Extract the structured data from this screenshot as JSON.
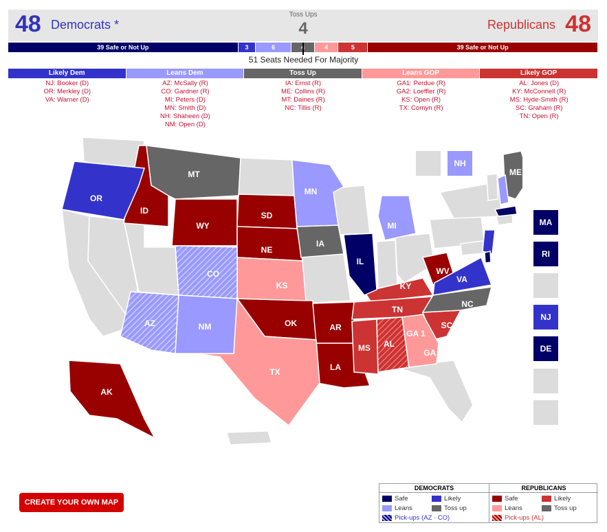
{
  "header": {
    "dem_count": "48",
    "dem_label": "Democrats *",
    "rep_count": "48",
    "rep_label": "Republicans",
    "toss_label": "Toss Ups",
    "toss_count": "4"
  },
  "colors": {
    "safe_dem": "#000066",
    "likely_dem": "#3333cc",
    "leans_dem": "#9999ff",
    "tossup": "#666666",
    "leans_gop": "#ff9999",
    "likely_gop": "#cc3333",
    "safe_gop": "#990000",
    "no_race": "#dcdcdc",
    "dem_text": "#3333bb",
    "rep_text": "#cc3333"
  },
  "seatbar": [
    {
      "label": "39 Safe or Not Up",
      "value": 39,
      "color": "#000066"
    },
    {
      "label": "3",
      "value": 3,
      "color": "#3333cc"
    },
    {
      "label": "6",
      "value": 6,
      "color": "#9999ff"
    },
    {
      "label": "4",
      "value": 4,
      "color": "#666666"
    },
    {
      "label": "4",
      "value": 4,
      "color": "#ff9999"
    },
    {
      "label": "5",
      "value": 5,
      "color": "#cc3333"
    },
    {
      "label": "39 Safe or Not Up",
      "value": 39,
      "color": "#990000"
    }
  ],
  "majority_text": "51 Seats Needed For Majority",
  "columns": [
    {
      "title": "Likely Dem",
      "color": "#3333cc",
      "items": [
        "NJ: Booker (D)",
        "OR: Merkley (D)",
        "VA: Warner (D)"
      ]
    },
    {
      "title": "Leans Dem",
      "color": "#9999ff",
      "items": [
        "AZ: McSally (R)",
        "CO: Gardner (R)",
        "MI: Peters (D)",
        "MN: Smith (D)",
        "NH: Shaheen (D)",
        "NM: Open (D)"
      ]
    },
    {
      "title": "Toss Up",
      "color": "#666666",
      "items": [
        "IA: Ernst (R)",
        "ME: Collins (R)",
        "MT: Daines (R)",
        "NC: Tillis (R)"
      ]
    },
    {
      "title": "Leans GOP",
      "color": "#ff9999",
      "items": [
        "GA1: Perdue (R)",
        "GA2: Loeffler (R)",
        "KS: Open (R)",
        "TX: Cornyn (R)"
      ]
    },
    {
      "title": "Likely GOP",
      "color": "#cc3333",
      "items": [
        "AL: Jones (D)",
        "KY: McConnell (R)",
        "MS: Hyde-Smith (R)",
        "SC: Graham (R)",
        "TN: Open (R)"
      ]
    }
  ],
  "map_labels": {
    "OR": "OR",
    "ID": "ID",
    "MT": "MT",
    "WY": "WY",
    "CO": "CO",
    "NM": "NM",
    "AZ": "AZ",
    "SD": "SD",
    "NE": "NE",
    "KS": "KS",
    "OK": "OK",
    "TX": "TX",
    "MN": "MN",
    "IA": "IA",
    "AR": "AR",
    "LA": "LA",
    "IL": "IL",
    "MI": "MI",
    "KY": "KY",
    "TN": "TN",
    "MS": "MS",
    "AL": "AL",
    "GA1": "GA 1",
    "GA2": "GA 2",
    "SC": "SC",
    "NC": "NC",
    "VA": "VA",
    "WV": "WV",
    "ME": "ME",
    "NH": "NH",
    "AK": "AK",
    "MA": "MA",
    "RI": "RI",
    "NJ": "NJ",
    "DE": "DE"
  },
  "create_button": "CREATE YOUR OWN MAP",
  "legend": {
    "dem_header": "DEMOCRATS",
    "rep_header": "REPUBLICANS",
    "dem_items": [
      "Safe",
      "Likely",
      "Leans",
      "Toss up",
      "Pick-ups (AZ · CO)"
    ],
    "rep_items": [
      "Safe",
      "Likely",
      "Leans",
      "Toss up",
      "Pick-ups (AL)"
    ]
  }
}
